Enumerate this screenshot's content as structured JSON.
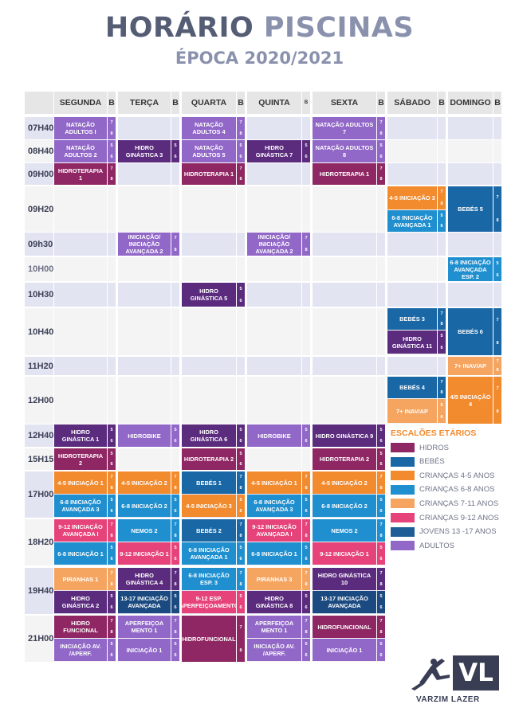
{
  "header": {
    "title_part1": "HORÁRIO",
    "title_part2": "PISCINAS",
    "subtitle": "ÉPOCA 2020/2021"
  },
  "colors": {
    "HID": "#8e2763",
    "BEB": "#1a67a6",
    "C45": "#f28a2e",
    "C68": "#1f8fcf",
    "C711": "#f6a561",
    "C912": "#e6437b",
    "JOV": "#1e5d96",
    "ADU": "#9168c8",
    "DPU": "#5b2b7e",
    "NAV": "#1b4a80"
  },
  "days": [
    "SEGUNDA",
    "TERÇA",
    "QUARTA",
    "QUINTA",
    "SEXTA",
    "SÁBADO",
    "DOMINGO"
  ],
  "b_label": "B",
  "b_label_small": "B",
  "times": [
    "07H40",
    "08H40",
    "09H00",
    "09H20",
    "09h30",
    "10H00",
    "10H30",
    "10H40",
    "11H20",
    "12H00",
    "12H40",
    "15H15",
    "17H00",
    "18H20",
    "19H40",
    "21H00"
  ],
  "classes": [
    {
      "r": 0,
      "d": 0,
      "n": "NATAÇÃO ADULTOS I",
      "c": "ADU",
      "b": [
        "7",
        "8"
      ]
    },
    {
      "r": 0,
      "d": 2,
      "n": "NATAÇÃO ADULTOS 4",
      "c": "ADU",
      "b": [
        "7",
        "8"
      ]
    },
    {
      "r": 0,
      "d": 4,
      "n": "NATAÇÃO ADULTOS 7",
      "c": "ADU",
      "b": [
        "7",
        "8"
      ]
    },
    {
      "r": 1,
      "d": 0,
      "n": "NATAÇÃO ADULTOS 2",
      "c": "ADU",
      "b": [
        "5",
        "6"
      ]
    },
    {
      "r": 1,
      "d": 1,
      "n": "HIDRO GINÁSTICA 3",
      "c": "DPU",
      "b": [
        "5",
        "6"
      ]
    },
    {
      "r": 1,
      "d": 2,
      "n": "NATAÇÃO ADULTOS 5",
      "c": "ADU",
      "b": [
        "5",
        "6"
      ]
    },
    {
      "r": 1,
      "d": 3,
      "n": "HIDRO GINÁSTICA 7",
      "c": "DPU",
      "b": [
        "5",
        "6"
      ]
    },
    {
      "r": 1,
      "d": 4,
      "n": "NATAÇÃO ADULTOS 8",
      "c": "ADU",
      "b": [
        "5",
        "6"
      ]
    },
    {
      "r": 2,
      "d": 0,
      "n": "HIDROTERAPIA 1",
      "c": "HID",
      "b": [
        "7",
        "8"
      ]
    },
    {
      "r": 2,
      "d": 2,
      "n": "HIDROTERAPIA 1",
      "c": "HID",
      "b": [
        "7",
        "8"
      ]
    },
    {
      "r": 2,
      "d": 4,
      "n": "HIDROTERAPIA 1",
      "c": "HID",
      "b": [
        "7",
        "8"
      ]
    },
    {
      "r": 3,
      "d": 5,
      "sub": 0,
      "n": "4-5 INICIAÇÃO 3",
      "c": "C45",
      "b": [
        "7",
        "8"
      ]
    },
    {
      "r": 3,
      "d": 5,
      "sub": 1,
      "n": "6-8 INICIAÇÃO AVANÇADA 1",
      "c": "C68",
      "b": [
        "5",
        "6"
      ]
    },
    {
      "r": 3,
      "d": 6,
      "n": "BEBÉS 5",
      "c": "BEB",
      "b": [
        "7",
        "8"
      ]
    },
    {
      "r": 4,
      "d": 1,
      "n": "INICIAÇÃO/ INICIAÇÃO AVANÇADA 2",
      "c": "ADU",
      "b": [
        "7",
        "8"
      ]
    },
    {
      "r": 4,
      "d": 3,
      "n": "INICIAÇÃO/ INICIAÇÃO AVANÇADA 2",
      "c": "ADU",
      "b": [
        "7",
        "8"
      ]
    },
    {
      "r": 5,
      "d": 6,
      "n": "6-8 INICIAÇÃO AVANÇADA ESP. 2",
      "c": "C68",
      "b": [
        "5",
        "6"
      ]
    },
    {
      "r": 6,
      "d": 2,
      "n": "HIDRO GINÁSTICA 5",
      "c": "DPU",
      "b": [
        "5",
        "6"
      ]
    },
    {
      "r": 7,
      "d": 5,
      "sub": 0,
      "n": "BEBÉS 3",
      "c": "BEB",
      "b": [
        "7",
        "8"
      ]
    },
    {
      "r": 7,
      "d": 5,
      "sub": 1,
      "n": "HIDRO GINÁSTICA 11",
      "c": "DPU",
      "b": [
        "5",
        "6"
      ]
    },
    {
      "r": 7,
      "d": 6,
      "n": "BEBÉS 6",
      "c": "BEB",
      "b": [
        "7",
        "8"
      ]
    },
    {
      "r": 8,
      "d": 6,
      "n": "7+ INAV/AP",
      "c": "C711",
      "b": [
        "7",
        "8"
      ]
    },
    {
      "r": 9,
      "d": 5,
      "sub": 0,
      "n": "BEBÉS 4",
      "c": "BEB",
      "b": [
        "7",
        "8"
      ]
    },
    {
      "r": 9,
      "d": 5,
      "sub": 1,
      "n": "7+ INAV/AP",
      "c": "C711",
      "b": [
        "5",
        "6"
      ]
    },
    {
      "r": 9,
      "d": 6,
      "n": "4/5 INICIAÇÃO 4",
      "c": "C45",
      "b": [
        "7",
        "8"
      ]
    },
    {
      "r": 10,
      "d": 0,
      "n": "HIDRO GINÁSTICA 1",
      "c": "DPU",
      "b": [
        "5",
        "6"
      ]
    },
    {
      "r": 10,
      "d": 1,
      "n": "HIDROBIKE",
      "c": "ADU",
      "b": [
        "5",
        "6"
      ]
    },
    {
      "r": 10,
      "d": 2,
      "n": "HIDRO GINÁSTICA 6",
      "c": "DPU",
      "b": [
        "5",
        "6"
      ]
    },
    {
      "r": 10,
      "d": 3,
      "n": "HIDROBIKE",
      "c": "ADU",
      "b": [
        "5",
        "6"
      ]
    },
    {
      "r": 10,
      "d": 4,
      "n": "HIDRO GINÁSTICA 9",
      "c": "DPU",
      "b": [
        "5",
        "6"
      ]
    },
    {
      "r": 11,
      "d": 0,
      "n": "HIDROTERAPIA 2",
      "c": "HID",
      "b": [
        "5",
        "6"
      ]
    },
    {
      "r": 11,
      "d": 2,
      "n": "HIDROTERAPIA 2",
      "c": "HID",
      "b": [
        "5",
        "6"
      ]
    },
    {
      "r": 11,
      "d": 4,
      "n": "HIDROTERAPIA 2",
      "c": "HID",
      "b": [
        "5",
        "6"
      ]
    },
    {
      "r": 12,
      "d": 0,
      "sub": 0,
      "n": "4-5 INICIAÇÃO 1",
      "c": "C45",
      "b": [
        "7",
        "8"
      ]
    },
    {
      "r": 12,
      "d": 1,
      "sub": 0,
      "n": "4-5 INICIAÇÃO 2",
      "c": "C45",
      "b": [
        "7",
        "8"
      ]
    },
    {
      "r": 12,
      "d": 2,
      "sub": 0,
      "n": "BEBÉS 1",
      "c": "BEB",
      "b": [
        "7",
        "8"
      ]
    },
    {
      "r": 12,
      "d": 3,
      "sub": 0,
      "n": "4-5 INICIAÇÃO 1",
      "c": "C45",
      "b": [
        "7",
        "8"
      ]
    },
    {
      "r": 12,
      "d": 4,
      "sub": 0,
      "n": "4-5 INICIAÇÃO 2",
      "c": "C45",
      "b": [
        "7",
        "8"
      ]
    },
    {
      "r": 12,
      "d": 0,
      "sub": 1,
      "n": "6-8 INICIAÇÃO AVANÇADA 3",
      "c": "C68",
      "b": [
        "5",
        "6"
      ]
    },
    {
      "r": 12,
      "d": 1,
      "sub": 1,
      "n": "6-8 INICIAÇÃO 2",
      "c": "C68",
      "b": [
        "5",
        "6"
      ]
    },
    {
      "r": 12,
      "d": 2,
      "sub": 1,
      "n": "4-5 INICIAÇÃO 3",
      "c": "C45",
      "b": [
        "5",
        "6"
      ]
    },
    {
      "r": 12,
      "d": 3,
      "sub": 1,
      "n": "6-8 INICIAÇÃO AVANÇADA 3",
      "c": "C68",
      "b": [
        "5",
        "6"
      ]
    },
    {
      "r": 12,
      "d": 4,
      "sub": 1,
      "n": "6-8 INICIAÇÃO 2",
      "c": "C68",
      "b": [
        "5",
        "6"
      ]
    },
    {
      "r": 13,
      "d": 0,
      "sub": 0,
      "n": "9-12 INICIAÇÃO AVANÇADA I",
      "c": "C912",
      "b": [
        "7",
        "8"
      ]
    },
    {
      "r": 13,
      "d": 1,
      "sub": 0,
      "n": "NEMOS 2",
      "c": "C68",
      "b": [
        "7",
        "8"
      ]
    },
    {
      "r": 13,
      "d": 2,
      "sub": 0,
      "n": "BEBÉS 2",
      "c": "BEB",
      "b": [
        "7",
        "8"
      ]
    },
    {
      "r": 13,
      "d": 3,
      "sub": 0,
      "n": "9-12 INICIAÇÃO AVANÇADA I",
      "c": "C912",
      "b": [
        "7",
        "8"
      ]
    },
    {
      "r": 13,
      "d": 4,
      "sub": 0,
      "n": "NEMOS 2",
      "c": "C68",
      "b": [
        "7",
        "8"
      ]
    },
    {
      "r": 13,
      "d": 0,
      "sub": 1,
      "n": "6-8 INICIAÇÃO 1",
      "c": "C68",
      "b": [
        "5",
        "6"
      ]
    },
    {
      "r": 13,
      "d": 1,
      "sub": 1,
      "n": "9-12 INICIAÇÃO 1",
      "c": "C912",
      "b": [
        "5",
        "6"
      ]
    },
    {
      "r": 13,
      "d": 2,
      "sub": 1,
      "n": "6-8 INICIAÇÃO AVANÇADA 1",
      "c": "C68",
      "b": [
        "5",
        "6"
      ]
    },
    {
      "r": 13,
      "d": 3,
      "sub": 1,
      "n": "6-8 INICIAÇÃO 1",
      "c": "C68",
      "b": [
        "5",
        "6"
      ]
    },
    {
      "r": 13,
      "d": 4,
      "sub": 1,
      "n": "9-12 INICIAÇÃO 1",
      "c": "C912",
      "b": [
        "5",
        "6"
      ]
    },
    {
      "r": 14,
      "d": 0,
      "sub": 0,
      "n": "PIRANHAS 1",
      "c": "C711",
      "b": [
        "7",
        "8"
      ]
    },
    {
      "r": 14,
      "d": 1,
      "sub": 0,
      "n": "HIDRO GINÁSTICA 4",
      "c": "DPU",
      "b": [
        "7",
        "8"
      ]
    },
    {
      "r": 14,
      "d": 2,
      "sub": 0,
      "n": "6-8 INICIAÇÃO ESP. 3",
      "c": "C68",
      "b": [
        "7",
        "8"
      ]
    },
    {
      "r": 14,
      "d": 3,
      "sub": 0,
      "n": "PIRANHAS 3",
      "c": "C711",
      "b": [
        "7",
        "8"
      ]
    },
    {
      "r": 14,
      "d": 4,
      "sub": 0,
      "n": "HIDRO GINÁSTICA 10",
      "c": "DPU",
      "b": [
        "7",
        "8"
      ]
    },
    {
      "r": 14,
      "d": 0,
      "sub": 1,
      "n": "HIDRO GINÁSTICA 2",
      "c": "DPU",
      "b": [
        "5",
        "6"
      ]
    },
    {
      "r": 14,
      "d": 1,
      "sub": 1,
      "n": "13-17 INICIAÇÃO AVANÇADA",
      "c": "NAV",
      "b": [
        "5",
        "6"
      ]
    },
    {
      "r": 14,
      "d": 2,
      "sub": 1,
      "n": "9-12 ESP. APERFEIÇOAMENTO",
      "c": "C912",
      "b": [
        "5",
        "6"
      ]
    },
    {
      "r": 14,
      "d": 3,
      "sub": 1,
      "n": "HIDRO GINÁSTICA 8",
      "c": "DPU",
      "b": [
        "5",
        "6"
      ]
    },
    {
      "r": 14,
      "d": 4,
      "sub": 1,
      "n": "13-17 INICIAÇÃO AVANÇADA",
      "c": "NAV",
      "b": [
        "5",
        "6"
      ]
    },
    {
      "r": 15,
      "d": 0,
      "sub": 0,
      "n": "HIDRO FUNCIONAL",
      "c": "HID",
      "b": [
        "7",
        "8"
      ]
    },
    {
      "r": 15,
      "d": 1,
      "sub": 0,
      "n": "APERFEIÇOA MENTO 1",
      "c": "ADU",
      "b": [
        "7",
        "8"
      ]
    },
    {
      "r": 15,
      "d": 2,
      "n": "HIDROFUNCIONAL",
      "c": "HID",
      "b": [
        "7",
        "8"
      ]
    },
    {
      "r": 15,
      "d": 3,
      "sub": 0,
      "n": "APERFEIÇOA MENTO 1",
      "c": "ADU",
      "b": [
        "7",
        "8"
      ]
    },
    {
      "r": 15,
      "d": 4,
      "sub": 0,
      "n": "HIDROFUNCIONAL",
      "c": "HID",
      "b": [
        "7",
        "8"
      ]
    },
    {
      "r": 15,
      "d": 0,
      "sub": 1,
      "n": "INICIAÇÃO AV. /APERF.",
      "c": "ADU",
      "b": [
        "5",
        "6"
      ]
    },
    {
      "r": 15,
      "d": 1,
      "sub": 1,
      "n": "INICIAÇÃO 1",
      "c": "ADU",
      "b": [
        "5",
        "6"
      ]
    },
    {
      "r": 15,
      "d": 3,
      "sub": 1,
      "n": "INICIAÇÃO AV. /APERF.",
      "c": "ADU",
      "b": [
        "5",
        "6"
      ]
    },
    {
      "r": 15,
      "d": 4,
      "sub": 1,
      "n": "INICIAÇÃO 1",
      "c": "ADU",
      "b": [
        "5",
        "6"
      ]
    }
  ],
  "legend": {
    "title": "ESCALÕES ETÁRIOS",
    "items": [
      {
        "label": "HIDROS",
        "color": "#8e2763"
      },
      {
        "label": "BEBÉS",
        "color": "#1a67a6"
      },
      {
        "label": "CRIANÇAS 4-5 ANOS",
        "color": "#f28a2e"
      },
      {
        "label": "CRIANÇAS 6-8 ANOS",
        "color": "#1f8fcf"
      },
      {
        "label": "CRIANÇAS 7-11 ANOS",
        "color": "#f6a561"
      },
      {
        "label": "CRIANÇAS 9-12 ANOS",
        "color": "#e6437b"
      },
      {
        "label": "JOVENS 13 -17 ANOS",
        "color": "#1e5d96"
      },
      {
        "label": "ADULTOS",
        "color": "#9168c8"
      }
    ]
  },
  "logo": {
    "initials": "VL",
    "brand": "VARZIM LAZER"
  }
}
